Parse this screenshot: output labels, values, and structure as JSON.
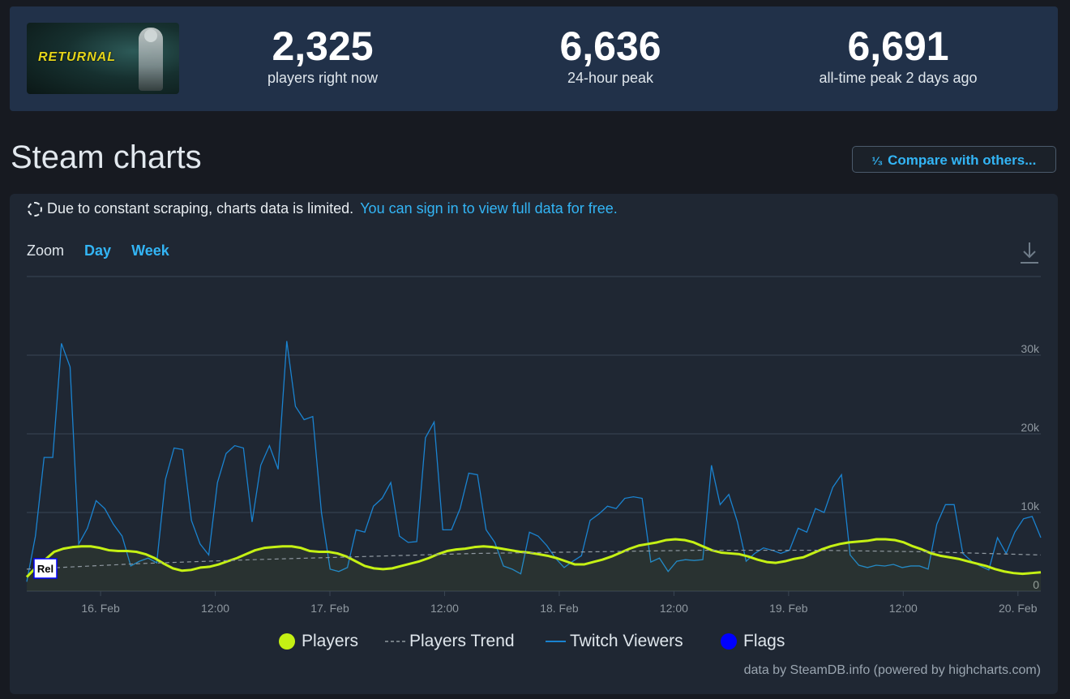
{
  "game": {
    "logo_text": "RETURNAL",
    "icon": "game-header-image"
  },
  "stats": [
    {
      "value": "2,325",
      "label": "players right now"
    },
    {
      "value": "6,636",
      "label": "24-hour peak"
    },
    {
      "value": "6,691",
      "label": "all-time peak 2 days ago"
    }
  ],
  "section": {
    "title": "Steam charts",
    "compare_fraction": "¹⁄₃",
    "compare_label": "Compare with others..."
  },
  "notice": {
    "text": "Due to constant scraping, charts data is limited.",
    "link": "You can sign in to view full data for free."
  },
  "zoom": {
    "label": "Zoom",
    "options": [
      "Day",
      "Week"
    ]
  },
  "credit": "data by SteamDB.info (powered by highcharts.com)",
  "colors": {
    "players": "#c5f114",
    "trend": "#8f98a0",
    "twitch": "#1a83d0",
    "flags": "#0000ff",
    "link": "#33b5f5"
  },
  "chart_data": {
    "type": "line",
    "x_unit": "hours since 15 Feb 12:00",
    "x_range": [
      0,
      117
    ],
    "x_ticks": [
      {
        "x": 4,
        "label": "16. Feb"
      },
      {
        "x": 10,
        "label": "12:00"
      },
      {
        "x": 16,
        "label": "17. Feb"
      },
      {
        "x": 22,
        "label": "12:00"
      },
      {
        "x": 28,
        "label": "18. Feb"
      },
      {
        "x": 34,
        "label": "12:00"
      },
      {
        "x": 40,
        "label": "19. Feb"
      },
      {
        "x": 46,
        "label": "12:00"
      },
      {
        "x": 52,
        "label": "20. Feb"
      }
    ],
    "y_range": [
      0,
      40000
    ],
    "y_ticks": [
      {
        "value": 0,
        "label": "0"
      },
      {
        "value": 10000,
        "label": "10k"
      },
      {
        "value": 20000,
        "label": "20k"
      },
      {
        "value": 30000,
        "label": "30k"
      }
    ],
    "legend": [
      "Players",
      "Players Trend",
      "Twitch Viewers",
      "Flags"
    ],
    "flag_label": "Rel",
    "series": [
      {
        "name": "Players",
        "values": [
          1800,
          3000,
          4000,
          5000,
          5400,
          5600,
          5700,
          5700,
          5500,
          5200,
          5100,
          5100,
          5000,
          4700,
          4200,
          3500,
          2900,
          2600,
          2700,
          3000,
          3100,
          3400,
          3800,
          4200,
          4700,
          5200,
          5500,
          5600,
          5700,
          5700,
          5500,
          5100,
          5000,
          5000,
          4800,
          4400,
          3800,
          3200,
          2900,
          2800,
          2900,
          3200,
          3500,
          3800,
          4200,
          4700,
          5100,
          5300,
          5400,
          5600,
          5700,
          5600,
          5400,
          5200,
          5000,
          4900,
          4700,
          4500,
          4200,
          3800,
          3400,
          3400,
          3700,
          4000,
          4400,
          4900,
          5400,
          5800,
          6000,
          6200,
          6500,
          6600,
          6500,
          6200,
          5700,
          5200,
          4900,
          4800,
          4700,
          4400,
          4000,
          3700,
          3600,
          3800,
          4100,
          4300,
          4800,
          5300,
          5700,
          6000,
          6200,
          6300,
          6400,
          6600,
          6600,
          6500,
          6200,
          5700,
          5300,
          4800,
          4500,
          4300,
          4100,
          3800,
          3500,
          3200,
          2800,
          2500,
          2300,
          2200,
          2300,
          2400
        ],
        "start_x": 0.5
      },
      {
        "name": "Players Trend",
        "values": [
          2800,
          3500,
          4000,
          4400,
          4800,
          5000,
          5200,
          5200,
          5000,
          4600
        ],
        "start_x": 0,
        "step": 12
      },
      {
        "name": "Twitch Viewers",
        "values": [
          1200,
          7000,
          17000,
          17000,
          31500,
          28500,
          6000,
          8000,
          11500,
          10500,
          8500,
          7000,
          3200,
          3800,
          4200,
          3600,
          14200,
          18200,
          18000,
          9000,
          6000,
          4600,
          13800,
          17500,
          18500,
          18200,
          8800,
          16000,
          18500,
          15500,
          31800,
          23500,
          21800,
          22200,
          10000,
          2800,
          2500,
          3000,
          7800,
          7500,
          10800,
          11800,
          13800,
          7000,
          6200,
          6300,
          19500,
          21500,
          7800,
          7800,
          10500,
          15000,
          14800,
          7800,
          6200,
          3200,
          2800,
          2200,
          7500,
          7000,
          5800,
          4200,
          3000,
          3800,
          4500,
          9000,
          9800,
          10800,
          10500,
          11800,
          12000,
          11800,
          3700,
          4200,
          2500,
          3800,
          4000,
          3900,
          4000,
          16000,
          11000,
          12300,
          8800,
          3800,
          4800,
          5500,
          5200,
          4800,
          5200,
          8000,
          7500,
          10500,
          10000,
          13200,
          14800,
          4600,
          3300,
          3000,
          3300,
          3200,
          3400,
          3000,
          3200,
          3200,
          2800,
          8500,
          11000,
          11000,
          4800,
          3800,
          3200,
          2700,
          6800,
          4800,
          7500,
          9200,
          9500,
          6800
        ]
      }
    ]
  }
}
